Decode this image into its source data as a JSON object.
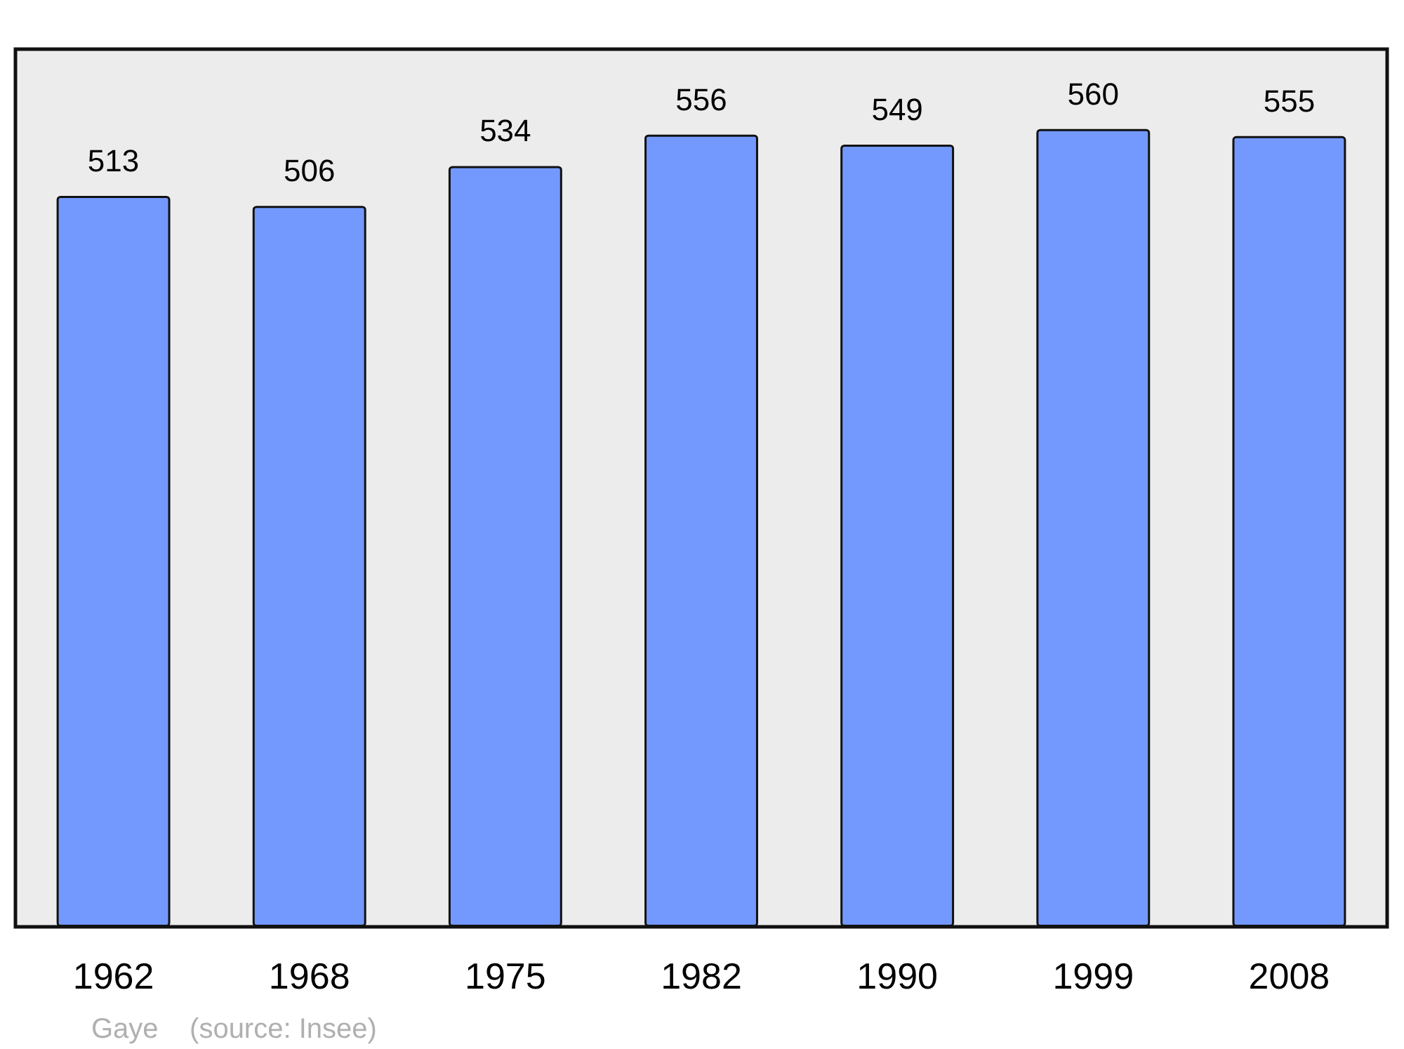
{
  "chart_data": {
    "type": "bar",
    "categories": [
      "1962",
      "1968",
      "1975",
      "1982",
      "1990",
      "1999",
      "2008"
    ],
    "values": [
      513,
      506,
      534,
      556,
      549,
      560,
      555
    ],
    "color": "#7399ff",
    "data_labels": true,
    "annotations": [
      "Gaye    (source: Insee)"
    ]
  }
}
